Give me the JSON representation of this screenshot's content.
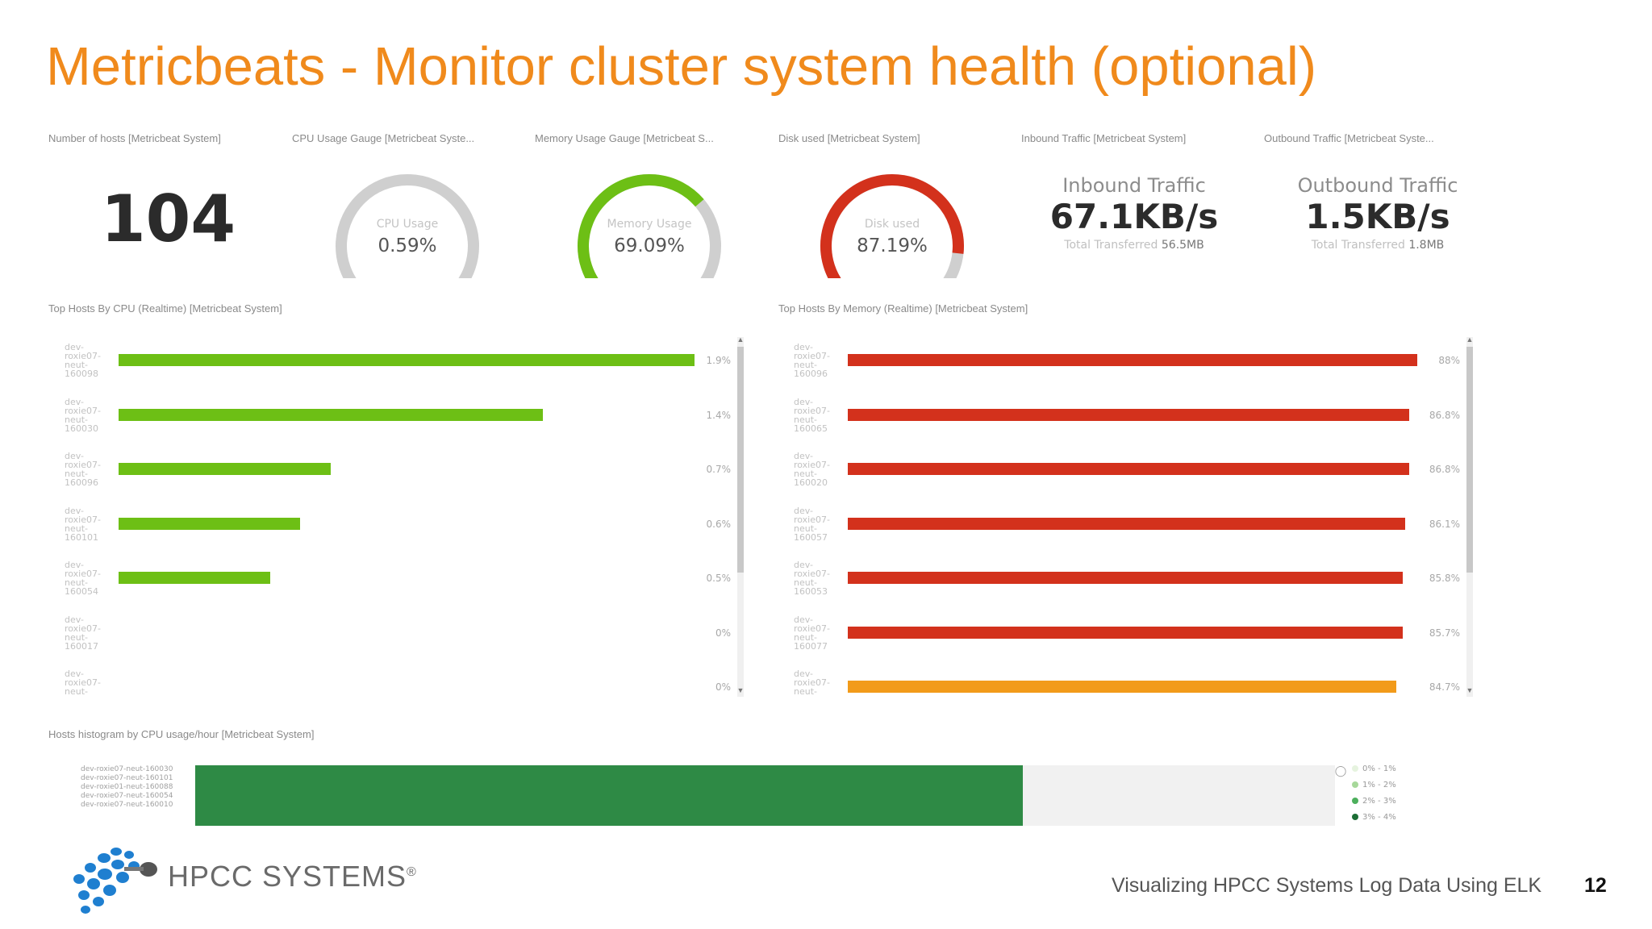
{
  "slide": {
    "title": "Metricbeats - Monitor cluster system health (optional)",
    "footer": "Visualizing HPCC Systems Log Data Using ELK",
    "page_number": "12",
    "logo_text": "HPCC SYSTEMS",
    "logo_mark": "®"
  },
  "colors": {
    "title": "#f08a1c",
    "gauge_gray": "#cfcfcf",
    "green": "#6dbf15",
    "red": "#d3311c",
    "orange": "#f29b1a",
    "dark_green": "#2e8a45",
    "logo_blue": "#1f7fd0"
  },
  "panels": {
    "hosts": {
      "title": "Number of hosts [Metricbeat System]",
      "value": "104"
    },
    "cpu_gauge": {
      "title": "CPU Usage Gauge [Metricbeat Syste...",
      "label": "CPU Usage",
      "value": "0.59%",
      "fraction": 0.0059,
      "color": "#cfcfcf"
    },
    "mem_gauge": {
      "title": "Memory Usage Gauge [Metricbeat S...",
      "label": "Memory Usage",
      "value": "69.09%",
      "fraction": 0.6909,
      "color": "#6dbf15"
    },
    "disk_gauge": {
      "title": "Disk used [Metricbeat System]",
      "label": "Disk used",
      "value": "87.19%",
      "fraction": 0.8719,
      "color": "#d3311c"
    },
    "inbound": {
      "title": "Inbound Traffic [Metricbeat System]",
      "label": "Inbound Traffic",
      "value": "67.1KB/s",
      "sub_label": "Total Transferred",
      "sub_value": "56.5MB"
    },
    "outbound": {
      "title": "Outbound Traffic [Metricbeat Syste...",
      "label": "Outbound Traffic",
      "value": "1.5KB/s",
      "sub_label": "Total Transferred",
      "sub_value": "1.8MB"
    },
    "top_cpu": {
      "title": "Top Hosts By CPU (Realtime) [Metricbeat System]"
    },
    "top_mem": {
      "title": "Top Hosts By Memory (Realtime) [Metricbeat System]"
    },
    "histogram": {
      "title": "Hosts histogram by CPU usage/hour [Metricbeat System]"
    }
  },
  "chart_data": [
    {
      "type": "bar",
      "title": "Top Hosts By CPU (Realtime) [Metricbeat System]",
      "categories": [
        "dev-\nroxie07-\nneut-\n160098",
        "dev-\nroxie07-\nneut-\n160030",
        "dev-\nroxie07-\nneut-\n160096",
        "dev-\nroxie07-\nneut-\n160101",
        "dev-\nroxie07-\nneut-\n160054",
        "dev-\nroxie07-\nneut-\n160017",
        "dev-\nroxie07-\nneut-"
      ],
      "values": [
        1.9,
        1.4,
        0.7,
        0.6,
        0.5,
        0,
        0
      ],
      "labels": [
        "1.9%",
        "1.4%",
        "0.7%",
        "0.6%",
        "0.5%",
        "0%",
        "0%"
      ],
      "xlim": [
        0,
        1.9
      ],
      "bar_colors": [
        "#6dbf15",
        "#6dbf15",
        "#6dbf15",
        "#6dbf15",
        "#6dbf15",
        "#6dbf15",
        "#6dbf15"
      ]
    },
    {
      "type": "bar",
      "title": "Top Hosts By Memory (Realtime) [Metricbeat System]",
      "categories": [
        "dev-\nroxie07-\nneut-\n160096",
        "dev-\nroxie07-\nneut-\n160065",
        "dev-\nroxie07-\nneut-\n160020",
        "dev-\nroxie07-\nneut-\n160057",
        "dev-\nroxie07-\nneut-\n160053",
        "dev-\nroxie07-\nneut-\n160077",
        "dev-\nroxie07-\nneut-"
      ],
      "values": [
        88,
        86.8,
        86.8,
        86.1,
        85.8,
        85.7,
        84.7
      ],
      "labels": [
        "88%",
        "86.8%",
        "86.8%",
        "86.1%",
        "85.8%",
        "85.7%",
        "84.7%"
      ],
      "xlim": [
        0,
        88
      ],
      "bar_colors": [
        "#d3311c",
        "#d3311c",
        "#d3311c",
        "#d3311c",
        "#d3311c",
        "#d3311c",
        "#f29b1a"
      ]
    }
  ],
  "histogram": {
    "row_labels": [
      "dev-roxie07-neut-160030",
      "dev-roxie07-neut-160101",
      "dev-roxie01-neut-160088",
      "dev-roxie07-neut-160054",
      "dev-roxie07-neut-160010"
    ],
    "filled_fraction": 0.726,
    "legend": [
      {
        "label": "0% - 1%",
        "color": "#e6f3df"
      },
      {
        "label": "1% - 2%",
        "color": "#a7d89a"
      },
      {
        "label": "2% - 3%",
        "color": "#4caf5c"
      },
      {
        "label": "3% - 4%",
        "color": "#1c6e35"
      }
    ]
  }
}
